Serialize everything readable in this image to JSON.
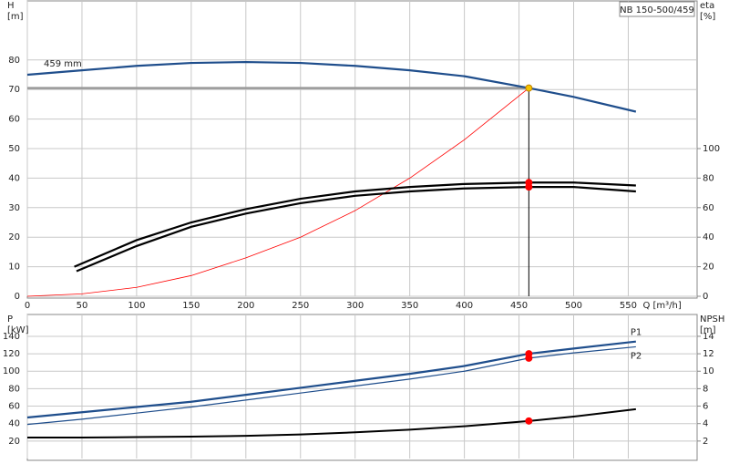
{
  "chart_data": [
    {
      "type": "line",
      "title": "NB 150-500/459",
      "ylabel": "H",
      "yunit": "[m]",
      "y2label": "eta",
      "y2unit": "[%]",
      "xlabel": "Q [m³/h]",
      "xlim": [
        0,
        613
      ],
      "xticks": [
        0,
        50,
        100,
        150,
        200,
        250,
        300,
        350,
        400,
        450,
        500,
        550
      ],
      "ylim": [
        0,
        100
      ],
      "yticks": [
        0,
        10,
        20,
        30,
        40,
        50,
        60,
        70,
        80
      ],
      "y2lim": [
        0,
        200
      ],
      "y2ticks": [
        0,
        20,
        40,
        60,
        80,
        100
      ],
      "grid": true,
      "operating_point_q": 459,
      "name_position": "start",
      "series": [
        {
          "name": "459 mm",
          "color": "#1f4e8c",
          "width": 2.2,
          "marker_color": "#f5c400",
          "operating_hline": true,
          "x": [
            0,
            50,
            100,
            150,
            200,
            250,
            300,
            350,
            400,
            459,
            500,
            557
          ],
          "values": [
            75,
            76.5,
            78,
            79,
            79.3,
            79,
            78,
            76.5,
            74.5,
            70.5,
            67.5,
            62.5
          ]
        },
        {
          "color": "#ff0000",
          "width": 0.8,
          "x": [
            0,
            50,
            100,
            150,
            200,
            250,
            300,
            350,
            400,
            459
          ],
          "values": [
            0,
            0.8,
            3,
            7,
            13,
            20,
            29,
            40,
            53,
            70.5
          ]
        },
        {
          "color": "#000000",
          "width": 2.2,
          "axis": "y2",
          "marker_color": "#ff0000",
          "x": [
            43,
            100,
            150,
            200,
            250,
            300,
            350,
            400,
            459,
            500,
            557
          ],
          "values": [
            20,
            38,
            50,
            59,
            66,
            71,
            74,
            76,
            77,
            77,
            75
          ]
        },
        {
          "color": "#000000",
          "width": 2.2,
          "axis": "y2",
          "marker_color": "#ff0000",
          "x": [
            45,
            100,
            150,
            200,
            250,
            300,
            350,
            400,
            459,
            500,
            557
          ],
          "values": [
            17,
            34,
            47,
            56,
            63,
            68,
            71,
            73,
            74,
            74,
            71
          ]
        }
      ]
    },
    {
      "type": "line",
      "ylabel": "P",
      "yunit": "[kW]",
      "y2label": "NPSH",
      "y2unit": "[m]",
      "xlim": [
        0,
        613
      ],
      "xticks": [
        0,
        50,
        100,
        150,
        200,
        250,
        300,
        350,
        400,
        450,
        500,
        550
      ],
      "show_xtick_labels": false,
      "ylim": [
        0,
        165
      ],
      "yticks": [
        20,
        40,
        60,
        80,
        100,
        120,
        140
      ],
      "y2lim": [
        0,
        16.5
      ],
      "y2ticks": [
        2,
        4,
        6,
        8,
        10,
        12,
        14
      ],
      "grid": true,
      "operating_point_q": 459,
      "name_position": "end",
      "series": [
        {
          "name": "P1",
          "color": "#1f4e8c",
          "width": 2.2,
          "marker_color": "#ff0000",
          "x": [
            0,
            50,
            100,
            150,
            200,
            250,
            300,
            350,
            400,
            459,
            500,
            557
          ],
          "values": [
            47,
            53,
            59,
            65,
            73,
            81,
            89,
            97,
            106,
            120,
            126,
            134
          ]
        },
        {
          "name": "P2",
          "color": "#1f4e8c",
          "width": 1.2,
          "marker_color": "#ff0000",
          "x": [
            0,
            50,
            100,
            150,
            200,
            250,
            300,
            350,
            400,
            459,
            500,
            557
          ],
          "values": [
            39,
            45,
            52,
            59,
            67,
            75,
            83,
            91,
            100,
            115,
            121,
            128
          ]
        },
        {
          "color": "#000000",
          "width": 2,
          "axis": "y2",
          "marker_color": "#ff0000",
          "x": [
            0,
            50,
            100,
            150,
            200,
            250,
            300,
            350,
            400,
            459,
            500,
            557
          ],
          "values": [
            2.4,
            2.4,
            2.45,
            2.5,
            2.6,
            2.75,
            3.0,
            3.3,
            3.7,
            4.3,
            4.8,
            5.65
          ]
        }
      ]
    }
  ]
}
